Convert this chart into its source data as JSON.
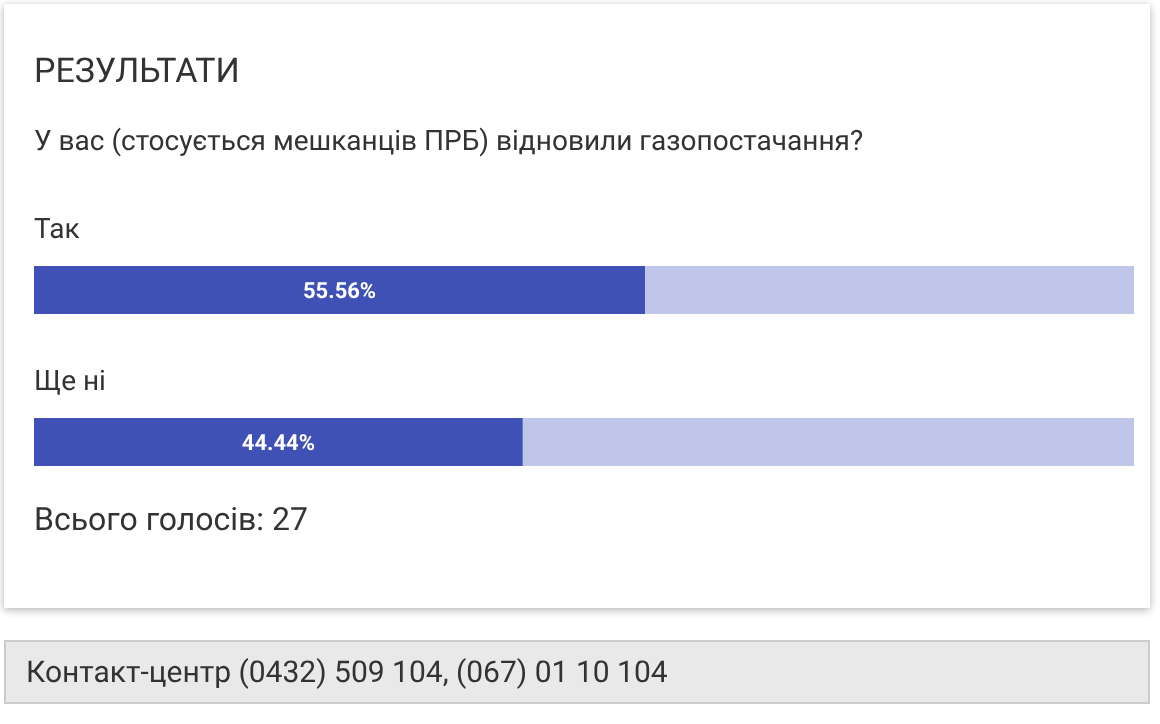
{
  "chart_data": {
    "type": "bar",
    "orientation": "horizontal",
    "stacked": true,
    "title": "РЕЗУЛЬТАТИ",
    "subtitle": "У вас (стосується мешканців ПРБ) відновили газопостачання?",
    "categories": [
      "Так",
      "Ще ні"
    ],
    "series": [
      {
        "color": "#3f51b5",
        "values": [
          55.56,
          44.44
        ],
        "value_labels": [
          "55.56%",
          "44.44%"
        ]
      },
      {
        "color": "#c0c6ea",
        "values": [
          44.44,
          55.56
        ]
      }
    ],
    "xlim": [
      0,
      100
    ],
    "tick_labels": false,
    "grid": false,
    "legend": false,
    "annotations": [
      "Всього голосів: 27",
      "Контакт-центр (0432) 509 104, (067) 01 10 104"
    ]
  }
}
